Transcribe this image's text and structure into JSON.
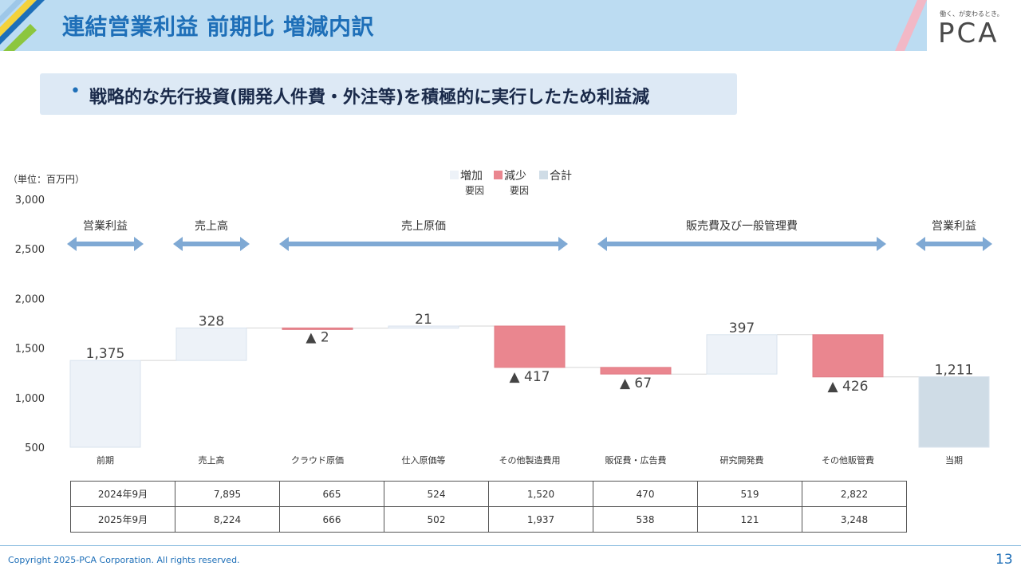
{
  "header": {
    "title": "連結営業利益 前期比 増減内訳",
    "logo_tagline": "働く、が変わるとき。",
    "logo": "PCA"
  },
  "callout": {
    "bullet": "•",
    "text": "戦略的な先行投資(開発人件費・外注等)を積極的に実行したため利益減"
  },
  "unit_label": "（単位：百万円）",
  "legend": {
    "items": [
      {
        "label": "増加",
        "sub": "要因",
        "color": "#edf2f8"
      },
      {
        "label": "減少",
        "sub": "要因",
        "color": "#ea868f"
      },
      {
        "label": "合計",
        "sub": "",
        "color": "#cfdce6"
      }
    ]
  },
  "colors": {
    "increase": "#edf2f8",
    "decrease": "#ea868f",
    "total": "#cfdce6",
    "arrow": "#7fa9d4"
  },
  "chart_data": {
    "type": "waterfall",
    "ylim": [
      500,
      3000
    ],
    "yticks": [
      "500",
      "1,000",
      "1,500",
      "2,000",
      "2,500",
      "3,000"
    ],
    "categories": [
      "前期",
      "売上高",
      "クラウド原価",
      "仕入原価等",
      "その他製造費用",
      "販促費・広告費",
      "研究開発費",
      "その他販管費",
      "当期"
    ],
    "kinds": [
      "total",
      "increase",
      "decrease",
      "increase",
      "decrease",
      "decrease",
      "increase",
      "decrease",
      "total"
    ],
    "values": [
      1375,
      328,
      -2,
      21,
      -417,
      -67,
      397,
      -426,
      1211
    ],
    "labels": [
      "1,375",
      "328",
      "▲ 2",
      "21",
      "▲ 417",
      "▲ 67",
      "397",
      "▲ 426",
      "1,211"
    ],
    "groups": [
      {
        "label": "営業利益",
        "from": 0,
        "to": 0
      },
      {
        "label": "売上高",
        "from": 1,
        "to": 1
      },
      {
        "label": "売上原価",
        "from": 2,
        "to": 4
      },
      {
        "label": "販売費及び一般管理費",
        "from": 5,
        "to": 7
      },
      {
        "label": "営業利益",
        "from": 8,
        "to": 8
      }
    ]
  },
  "table": {
    "rows": [
      {
        "label": "2024年9月",
        "values": [
          "7,895",
          "665",
          "524",
          "1,520",
          "470",
          "519",
          "2,822"
        ]
      },
      {
        "label": "2025年9月",
        "values": [
          "8,224",
          "666",
          "502",
          "1,937",
          "538",
          "121",
          "3,248"
        ]
      }
    ]
  },
  "footer": {
    "copyright": "Copyright 2025-PCA Corporation. All rights reserved.",
    "page": "13"
  }
}
